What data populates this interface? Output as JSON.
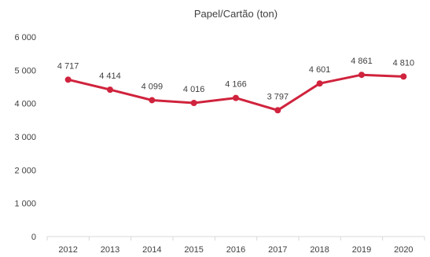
{
  "chart_data": {
    "type": "line",
    "title": "Papel/Cartão  (ton)",
    "xlabel": "",
    "ylabel": "",
    "categories": [
      "2012",
      "2013",
      "2014",
      "2015",
      "2016",
      "2017",
      "2018",
      "2019",
      "2020"
    ],
    "series": [
      {
        "values": [
          4717,
          4414,
          4099,
          4016,
          4166,
          3797,
          4601,
          4861,
          4810
        ],
        "labels": [
          "4 717",
          "4 414",
          "4 099",
          "4 016",
          "4 166",
          "3 797",
          "4 601",
          "4 861",
          "4 810"
        ],
        "color": "#d0233d"
      }
    ],
    "ylim": [
      0,
      6000
    ],
    "yticks": [
      0,
      1000,
      2000,
      3000,
      4000,
      5000,
      6000
    ],
    "ytick_labels": [
      "0",
      "1 000",
      "2 000",
      "3 000",
      "4 000",
      "5 000",
      "6 000"
    ],
    "grid": false,
    "legend": "none",
    "axis_color": "#d9d9d9"
  }
}
